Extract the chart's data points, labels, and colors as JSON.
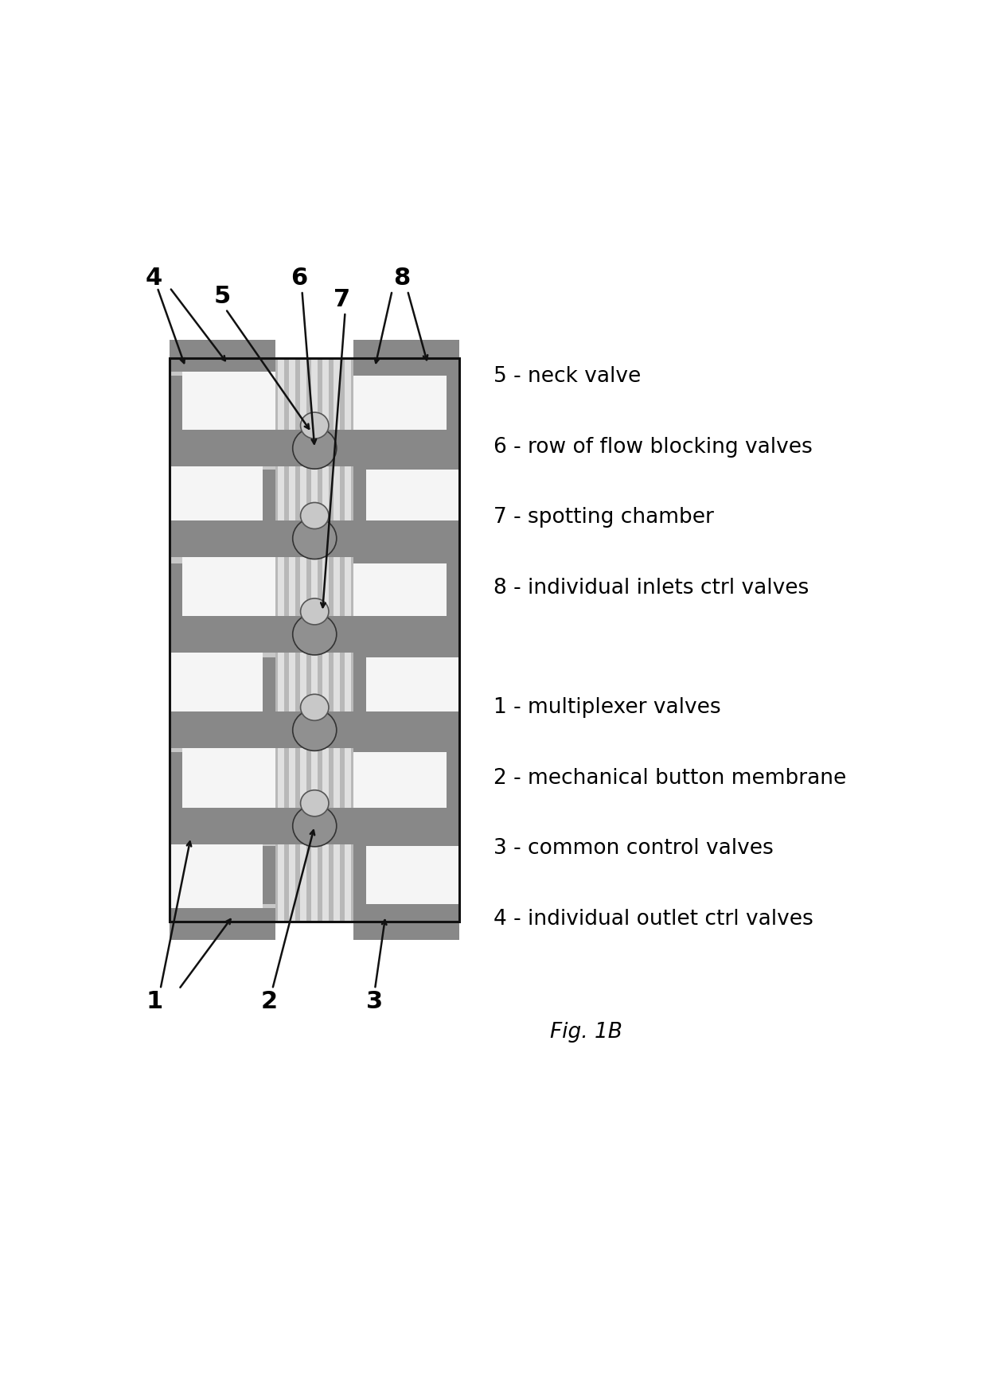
{
  "bg_color": "#ffffff",
  "fig_width": 12.4,
  "fig_height": 17.34,
  "C_DARK": "#888888",
  "C_MED": "#aaaaaa",
  "C_LIGHT": "#c8c8c8",
  "C_LIGHTER": "#e0e0e0",
  "C_WHITE": "#f5f5f5",
  "C_STRIPE": "#b8b8b8",
  "C_BORDER": "#111111",
  "C_VALVE": "#909090",
  "label_fontsize": 22,
  "legend_fontsize": 19,
  "fig_label": "Fig. 1B",
  "legend_items_right": [
    "5 - neck valve",
    "6 - row of flow blocking valves",
    "7 - spotting chamber",
    "8 - individual inlets ctrl valves"
  ],
  "legend_items_left": [
    "1 - multiplexer valves",
    "2 - mechanical button membrane",
    "3 - common control valves",
    "4 - individual outlet ctrl valves"
  ]
}
